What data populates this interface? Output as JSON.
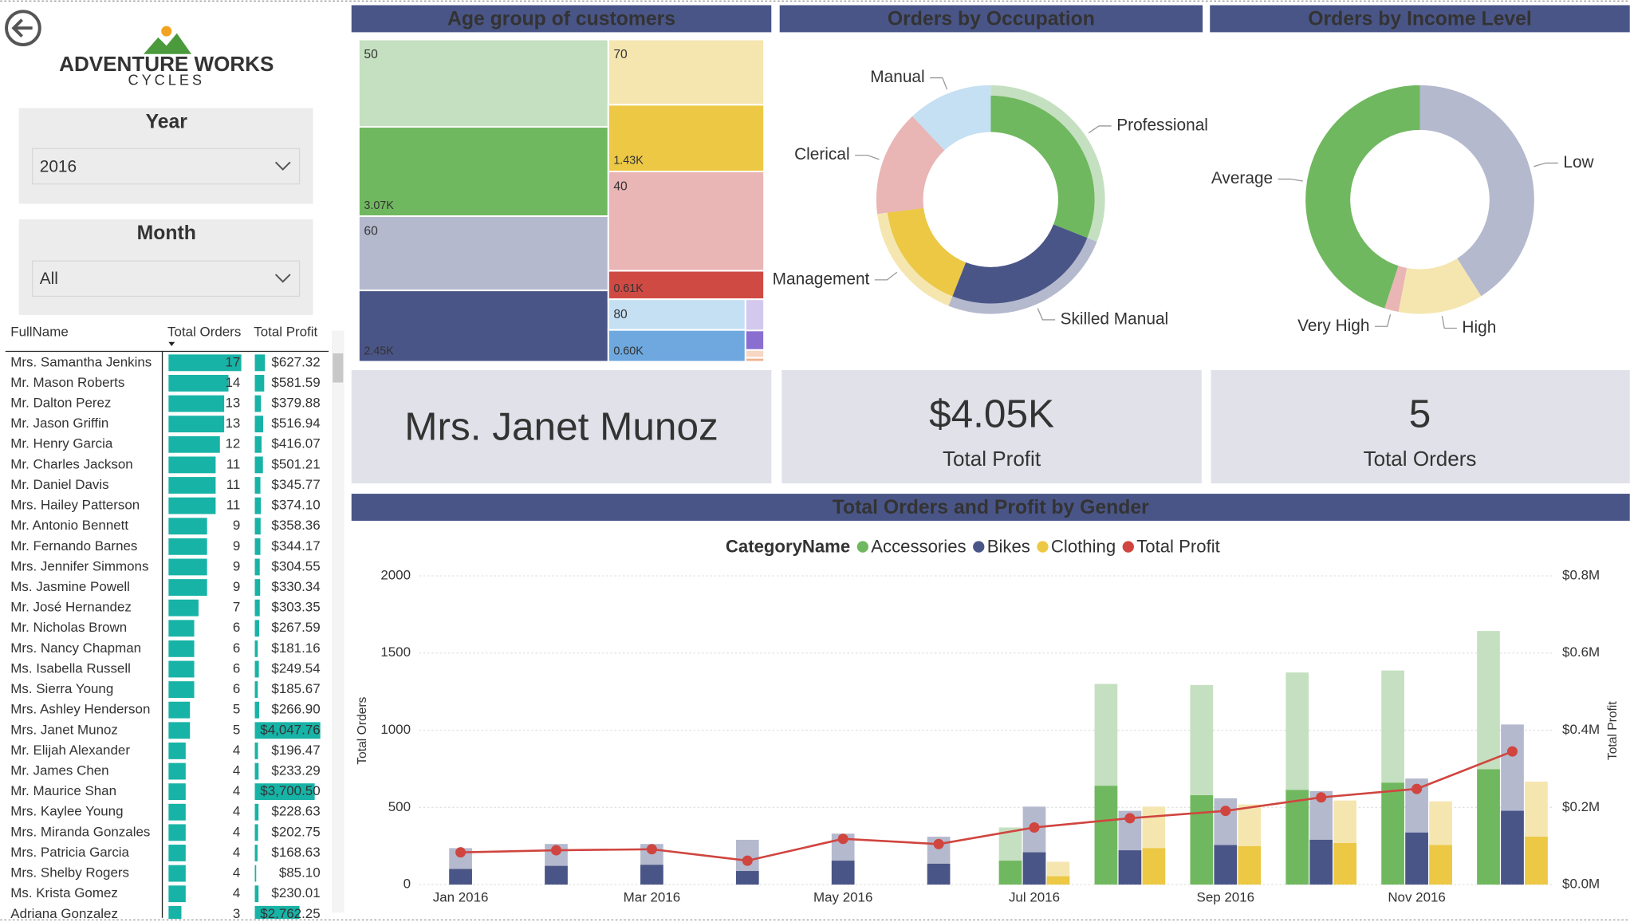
{
  "header": {
    "logo_title": "ADVENTURE WORKS",
    "logo_subtitle": "CYCLES"
  },
  "slicers": [
    {
      "title": "Year",
      "value": "2016"
    },
    {
      "title": "Month",
      "value": "All"
    }
  ],
  "table": {
    "columns": [
      "FullName",
      "Total Orders",
      "Total Profit"
    ],
    "bar_color": "#17b3a6",
    "names": [
      "Mrs. Samantha Jenkins",
      "Mr. Mason Roberts",
      "Mr. Dalton Perez",
      "Mr. Jason Griffin",
      "Mr. Henry Garcia",
      "Mr. Charles Jackson",
      "Mr. Daniel Davis",
      "Mrs. Hailey Patterson",
      "Mr. Antonio Bennett",
      "Mr. Fernando Barnes",
      "Mrs. Jennifer Simmons",
      "Ms. Jasmine Powell",
      "Mr. José Hernandez",
      "Mr. Nicholas Brown",
      "Mrs. Nancy Chapman",
      "Ms. Isabella Russell",
      "Ms. Sierra Young",
      "Mrs. Ashley Henderson",
      "Mrs. Janet Munoz",
      "Mr. Elijah Alexander",
      "Mr. James Chen",
      "Mr. Maurice Shan",
      "Mrs. Kaylee Young",
      "Mrs. Miranda Gonzales",
      "Mrs. Patricia Garcia",
      "Mrs. Shelby Rogers",
      "Ms. Krista Gomez",
      "Adriana Gonzalez"
    ],
    "orders": [
      17,
      14,
      13,
      13,
      12,
      11,
      11,
      11,
      9,
      9,
      9,
      9,
      7,
      6,
      6,
      6,
      6,
      5,
      5,
      4,
      4,
      4,
      4,
      4,
      4,
      4,
      4,
      3
    ],
    "profit": [
      627.32,
      581.59,
      379.88,
      516.94,
      416.07,
      501.21,
      345.77,
      374.1,
      358.36,
      344.17,
      304.55,
      330.34,
      303.35,
      267.59,
      181.16,
      249.54,
      185.67,
      266.9,
      4047.76,
      196.47,
      233.29,
      3700.5,
      228.63,
      202.75,
      168.63,
      85.1,
      230.01,
      2762.25
    ],
    "profit_labels": [
      "$627.32",
      "$581.59",
      "$379.88",
      "$516.94",
      "$416.07",
      "$501.21",
      "$345.77",
      "$374.10",
      "$358.36",
      "$344.17",
      "$304.55",
      "$330.34",
      "$303.35",
      "$267.59",
      "$181.16",
      "$249.54",
      "$185.67",
      "$266.90",
      "$4,047.76",
      "$196.47",
      "$233.29",
      "$3,700.50",
      "$228.63",
      "$202.75",
      "$168.63",
      "$85.10",
      "$230.01",
      "$2,762.25"
    ]
  },
  "cards": [
    {
      "value": "Mrs. Janet Munoz"
    },
    {
      "value": 4050,
      "value_label": "$4.05K",
      "label": "Total Profit"
    },
    {
      "value": 5,
      "label": "Total Orders"
    }
  ],
  "chart_data": [
    {
      "type": "treemap",
      "title": "Age group of customers",
      "groups": [
        {
          "name": "50",
          "colors": [
            "#c5e0c0",
            "#70b85f"
          ],
          "values": [
            3000,
            3070
          ],
          "value_labels": [
            null,
            "3.07K"
          ]
        },
        {
          "name": "60",
          "colors": [
            "#b4b9ce",
            "#4a5587"
          ],
          "values": [
            2550,
            2450
          ],
          "value_labels": [
            null,
            "2.45K"
          ]
        },
        {
          "name": "70",
          "colors": [
            "#f5e6b0",
            "#ecc845"
          ],
          "values": [
            1400,
            1430
          ],
          "value_labels": [
            null,
            "1.43K"
          ]
        },
        {
          "name": "40",
          "colors": [
            "#e9b5b5",
            "#d04a44"
          ],
          "values": [
            2130,
            610
          ],
          "value_labels": [
            null,
            "0.61K"
          ]
        },
        {
          "name": "80",
          "colors": [
            "#c5dff3",
            "#6ea8df"
          ],
          "values": [
            580,
            600
          ],
          "value_labels": [
            null,
            "0.60K"
          ]
        },
        {
          "name": null,
          "colors": [
            "#d3c9ee",
            "#8b6fd0"
          ],
          "values": [
            80,
            50
          ],
          "value_labels": [
            null,
            null
          ]
        },
        {
          "name": null,
          "colors": [
            "#f7d7c4",
            "#f0b390"
          ],
          "values": [
            20,
            10
          ],
          "value_labels": [
            null,
            null
          ]
        }
      ]
    },
    {
      "type": "donut",
      "title": "Orders by Occupation",
      "categories": [
        "Professional",
        "Skilled Manual",
        "Management",
        "Clerical",
        "Manual"
      ],
      "values": [
        31,
        25,
        17,
        15,
        12
      ],
      "colors": [
        "#70b85f",
        "#4a5587",
        "#ecc845",
        "#e9b5b5",
        "#c5dff3"
      ],
      "outer_colors": [
        "#c5e0c0",
        "#b4b9ce",
        "#f5e6b0",
        "#e9b5b5",
        "#c5dff3"
      ]
    },
    {
      "type": "donut",
      "title": "Orders by Income Level",
      "categories": [
        "Low",
        "High",
        "Very High",
        "Average"
      ],
      "values": [
        41,
        12,
        2,
        45
      ],
      "colors": [
        "#b4b9ce",
        "#f5e6b0",
        "#e9b5b5",
        "#70b85f"
      ]
    },
    {
      "type": "combo",
      "title": "Total Orders and Profit by Gender",
      "legend_title": "CategoryName",
      "y_label": "Total Orders",
      "y2_label": "Total Profit",
      "categories": [
        "Jan 2016",
        null,
        "Mar 2016",
        null,
        "May 2016",
        null,
        "Jul 2016",
        null,
        "Sep 2016",
        null,
        "Nov 2016",
        null
      ],
      "ylim": [
        0,
        2000
      ],
      "yticks": [
        0,
        500,
        1000,
        1500,
        2000
      ],
      "y2lim": [
        0,
        800000
      ],
      "y2ticks": [
        {
          "value": 0,
          "label": "$0.0M"
        },
        {
          "value": 200000,
          "label": "$0.2M"
        },
        {
          "value": 400000,
          "label": "$0.4M"
        },
        {
          "value": 600000,
          "label": "$0.6M"
        },
        {
          "value": 800000,
          "label": "$0.8M"
        }
      ],
      "grid": true,
      "series": [
        {
          "name": "Accessories",
          "color": "#70b85f",
          "light_color": "#c5e0c0",
          "values": [
            null,
            null,
            null,
            null,
            null,
            null,
            370,
            1300,
            1293,
            1374,
            1387,
            1643
          ],
          "highlight_values": [
            null,
            null,
            null,
            null,
            null,
            null,
            155,
            640,
            579,
            613,
            660,
            747
          ]
        },
        {
          "name": "Bikes",
          "color": "#4a5587",
          "light_color": "#b4b9ce",
          "values": [
            236,
            263,
            263,
            290,
            330,
            310,
            505,
            478,
            559,
            606,
            687,
            1037
          ],
          "highlight_values": [
            101,
            121,
            128,
            88,
            155,
            135,
            209,
            222,
            256,
            290,
            337,
            478
          ]
        },
        {
          "name": "Clothing",
          "color": "#ecc845",
          "light_color": "#f5e6b0",
          "values": [
            null,
            null,
            null,
            null,
            null,
            null,
            148,
            505,
            519,
            545,
            539,
            667
          ],
          "highlight_values": [
            null,
            null,
            null,
            null,
            null,
            null,
            54,
            236,
            249,
            269,
            256,
            310
          ]
        },
        {
          "name": "Total Profit",
          "type": "line",
          "axis": "y2",
          "color": "#d0453f",
          "values": [
            83500,
            88900,
            91600,
            62000,
            118500,
            105000,
            148000,
            172000,
            191000,
            226000,
            248000,
            345000
          ]
        }
      ]
    }
  ]
}
